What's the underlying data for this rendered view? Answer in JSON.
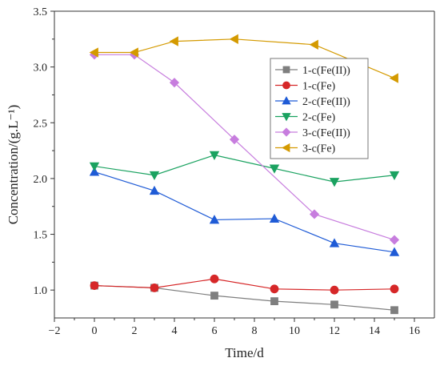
{
  "chart_data": {
    "type": "line",
    "xlabel": "Time/d",
    "ylabel": "Concentration/(g.L⁻¹)",
    "xlim": [
      -2,
      17
    ],
    "ylim": [
      0.75,
      3.5
    ],
    "xticks": [
      -2,
      0,
      2,
      4,
      6,
      8,
      10,
      12,
      14,
      16
    ],
    "xtick_labels": [
      "−2",
      "0",
      "2",
      "4",
      "6",
      "8",
      "10",
      "12",
      "14",
      "16"
    ],
    "yticks": [
      1.0,
      1.5,
      2.0,
      2.5,
      3.0,
      3.5
    ],
    "ytick_labels": [
      "1.0",
      "1.5",
      "2.0",
      "2.5",
      "3.0",
      "3.5"
    ],
    "grid": false,
    "legend_position": "top-right",
    "series": [
      {
        "name": "1-c(Fe(II))",
        "color": "#7f7f7f",
        "marker": "square",
        "x": [
          0,
          3,
          6,
          9,
          12,
          15
        ],
        "y": [
          1.04,
          1.02,
          0.95,
          0.9,
          0.87,
          0.82
        ]
      },
      {
        "name": "1-c(Fe)",
        "color": "#d62728",
        "marker": "circle",
        "x": [
          0,
          3,
          6,
          9,
          12,
          15
        ],
        "y": [
          1.04,
          1.02,
          1.1,
          1.01,
          1.0,
          1.01
        ]
      },
      {
        "name": "2-c(Fe(II))",
        "color": "#1f5bd6",
        "marker": "triangle-up",
        "x": [
          0,
          3,
          6,
          9,
          12,
          15
        ],
        "y": [
          2.06,
          1.89,
          1.63,
          1.64,
          1.42,
          1.34
        ]
      },
      {
        "name": "2-c(Fe)",
        "color": "#1aa260",
        "marker": "triangle-down",
        "x": [
          0,
          3,
          6,
          9,
          12,
          15
        ],
        "y": [
          2.11,
          2.03,
          2.21,
          2.09,
          1.97,
          2.03
        ]
      },
      {
        "name": "3-c(Fe(II))",
        "color": "#c77dde",
        "marker": "diamond",
        "x": [
          0,
          2,
          4,
          7,
          11,
          15
        ],
        "y": [
          3.11,
          3.11,
          2.86,
          2.35,
          1.68,
          1.45
        ]
      },
      {
        "name": "3-c(Fe)",
        "color": "#d49a00",
        "marker": "triangle-left",
        "x": [
          0,
          2,
          4,
          7,
          11,
          15
        ],
        "y": [
          3.13,
          3.13,
          3.23,
          3.25,
          3.2,
          2.9
        ]
      }
    ]
  }
}
